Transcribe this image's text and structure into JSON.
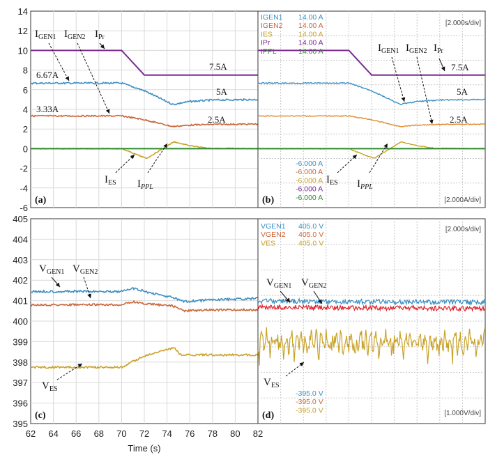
{
  "colors": {
    "gen1": "#3b8fc4",
    "gen2": "#c8663a",
    "es": "#c9a227",
    "pr": "#7a2c8f",
    "ppl": "#2e8b2e",
    "vgen2_scope": "#e0202a"
  },
  "xaxis": {
    "label": "Time (s)",
    "ticks": [
      "62",
      "64",
      "66",
      "68",
      "70",
      "72",
      "74",
      "76",
      "78",
      "80",
      "82"
    ]
  },
  "chart_data": [
    {
      "id": "a",
      "panel_label": "(a)",
      "type": "line",
      "xlim": [
        62,
        82
      ],
      "ylim": [
        -6,
        14
      ],
      "yticks": [
        "14",
        "12",
        "10",
        "8",
        "6",
        "4",
        "2",
        "0",
        "-2",
        "-4",
        "-6"
      ],
      "series": [
        {
          "key": "pr",
          "x": [
            62,
            70,
            72,
            82
          ],
          "y": [
            10,
            10,
            7.5,
            7.5
          ]
        },
        {
          "key": "gen1",
          "x": [
            62,
            70,
            72,
            74.5,
            76,
            78,
            82
          ],
          "y": [
            6.67,
            6.67,
            5.9,
            4.5,
            4.8,
            4.95,
            5.0
          ]
        },
        {
          "key": "gen2",
          "x": [
            62,
            70,
            72,
            74.5,
            76,
            78,
            82
          ],
          "y": [
            3.33,
            3.33,
            2.95,
            2.25,
            2.4,
            2.47,
            2.5
          ]
        },
        {
          "key": "es",
          "x": [
            62,
            70,
            72.2,
            74.6,
            76,
            77.5,
            82
          ],
          "y": [
            0,
            0,
            -1.0,
            0.7,
            0.3,
            0.05,
            0
          ]
        },
        {
          "key": "ppl",
          "x": [
            62,
            82
          ],
          "y": [
            0,
            0
          ]
        }
      ],
      "texts": {
        "igen1": "I",
        "igen1_sub": "GEN1",
        "igen2": "I",
        "igen2_sub": "GEN2",
        "ipr": "I",
        "ipr_sub": "Pr",
        "ies": "I",
        "ies_sub": "ES",
        "ippl": "I",
        "ippl_sub": "PPL",
        "v667": "6.67A",
        "v333": "3.33A",
        "v75": "7.5A",
        "v5": "5A",
        "v25": "2.5A"
      }
    },
    {
      "id": "b",
      "panel_label": "(b)",
      "type": "line",
      "time_div": "[2.000s/div]",
      "amp_div": "[2.000A/div]",
      "legend": [
        {
          "name": "IGEN1",
          "top": "14.00 A",
          "bottom": "-6.000 A",
          "key": "gen1"
        },
        {
          "name": "IGEN2",
          "top": "14.00 A",
          "bottom": "-6.000 A",
          "key": "gen2"
        },
        {
          "name": "IES",
          "top": "14.00 A",
          "bottom": "-6.000 A",
          "key": "es"
        },
        {
          "name": "IPr",
          "top": "14.00 A",
          "bottom": "-6.000 A",
          "key": "pr"
        },
        {
          "name": "IPPL",
          "top": "14.00 A",
          "bottom": "-6.000 A",
          "key": "ppl"
        }
      ],
      "texts": {
        "igen1": "I",
        "igen1_sub": "GEN1",
        "igen2": "I",
        "igen2_sub": "GEN2",
        "ipr": "I",
        "ipr_sub": "Pr",
        "ies": "I",
        "ies_sub": "ES",
        "ippl": "I",
        "ippl_sub": "PPL",
        "v75": "7.5A",
        "v5": "5A",
        "v25": "2.5A"
      }
    },
    {
      "id": "c",
      "panel_label": "(c)",
      "type": "line",
      "xlim": [
        62,
        82
      ],
      "ylim": [
        395,
        405
      ],
      "yticks": [
        "405",
        "404",
        "403",
        "402",
        "401",
        "400",
        "399",
        "398",
        "397",
        "396",
        "395"
      ],
      "series": [
        {
          "key": "gen1",
          "x": [
            62,
            70,
            71,
            72,
            74.5,
            75.5,
            78,
            82
          ],
          "y": [
            401.45,
            401.45,
            401.6,
            401.45,
            401.15,
            400.95,
            401.05,
            401.1
          ]
        },
        {
          "key": "gen2",
          "x": [
            62,
            70,
            71,
            72,
            74.5,
            75.5,
            78,
            82
          ],
          "y": [
            400.8,
            400.8,
            400.95,
            400.85,
            400.75,
            400.5,
            400.55,
            400.55
          ]
        },
        {
          "key": "es",
          "x": [
            62,
            70,
            72,
            74.6,
            75.2,
            78,
            82
          ],
          "y": [
            397.75,
            397.75,
            398.3,
            398.7,
            398.35,
            398.35,
            398.35
          ]
        }
      ],
      "texts": {
        "vgen1": "V",
        "vgen1_sub": "GEN1",
        "vgen2": "V",
        "vgen2_sub": "GEN2",
        "ves": "V",
        "ves_sub": "ES"
      }
    },
    {
      "id": "d",
      "panel_label": "(d)",
      "type": "line",
      "time_div": "[2.000s/div]",
      "volt_div": "[1.000V/div]",
      "legend": [
        {
          "name": "VGEN1",
          "top": "405.0 V",
          "bottom": "-395.0 V",
          "key": "gen1"
        },
        {
          "name": "VGEN2",
          "top": "405.0 V",
          "bottom": "-395.0 V",
          "key": "gen2"
        },
        {
          "name": "VES",
          "top": "405.0 V",
          "bottom": "-395.0 V",
          "key": "es"
        }
      ],
      "texts": {
        "vgen1": "V",
        "vgen1_sub": "GEN1",
        "vgen2": "V",
        "vgen2_sub": "GEN2",
        "ves": "V",
        "ves_sub": "ES"
      }
    }
  ]
}
